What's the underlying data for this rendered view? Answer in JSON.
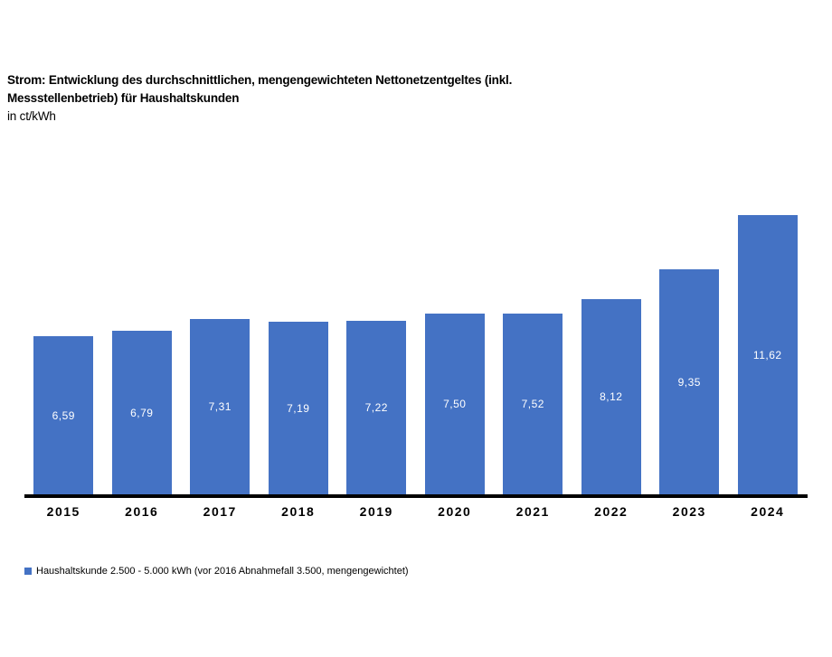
{
  "header": {
    "title_lines": [
      "Strom: Entwicklung des durchschnittlichen, mengengewichteten Nettonetzentgeltes (inkl.",
      "Messstellenbetrieb) für Haushaltskunden"
    ],
    "subtitle": "in ct/kWh"
  },
  "colors": {
    "bar": "#4472C4",
    "axis": "#000000",
    "bar_label": "#FFFFFF",
    "text": "#000000"
  },
  "chart_data": {
    "type": "bar",
    "title": "Strom: Entwicklung des durchschnittlichen, mengengewichteten Nettonetzentgeltes (inkl. Messstellenbetrieb) für Haushaltskunden",
    "ylabel": "in ct/kWh",
    "categories": [
      "2015",
      "2016",
      "2017",
      "2018",
      "2019",
      "2020",
      "2021",
      "2022",
      "2023",
      "2024"
    ],
    "values": [
      6.59,
      6.79,
      7.31,
      7.19,
      7.22,
      7.5,
      7.52,
      8.12,
      9.35,
      11.62
    ],
    "value_labels": [
      "6,59",
      "6,79",
      "7,31",
      "7,19",
      "7,22",
      "7,50",
      "7,52",
      "8,12",
      "9,35",
      "11,62"
    ],
    "ylim": [
      0,
      12
    ],
    "grid": false,
    "legend_position": "bottom",
    "legend_entries": [
      "Haushaltskunde 2.500 - 5.000 kWh (vor 2016 Abnahmefall 3.500, mengengewichtet)"
    ]
  },
  "legend": {
    "label": "Haushaltskunde 2.500 - 5.000 kWh (vor 2016 Abnahmefall 3.500, mengengewichtet)"
  }
}
